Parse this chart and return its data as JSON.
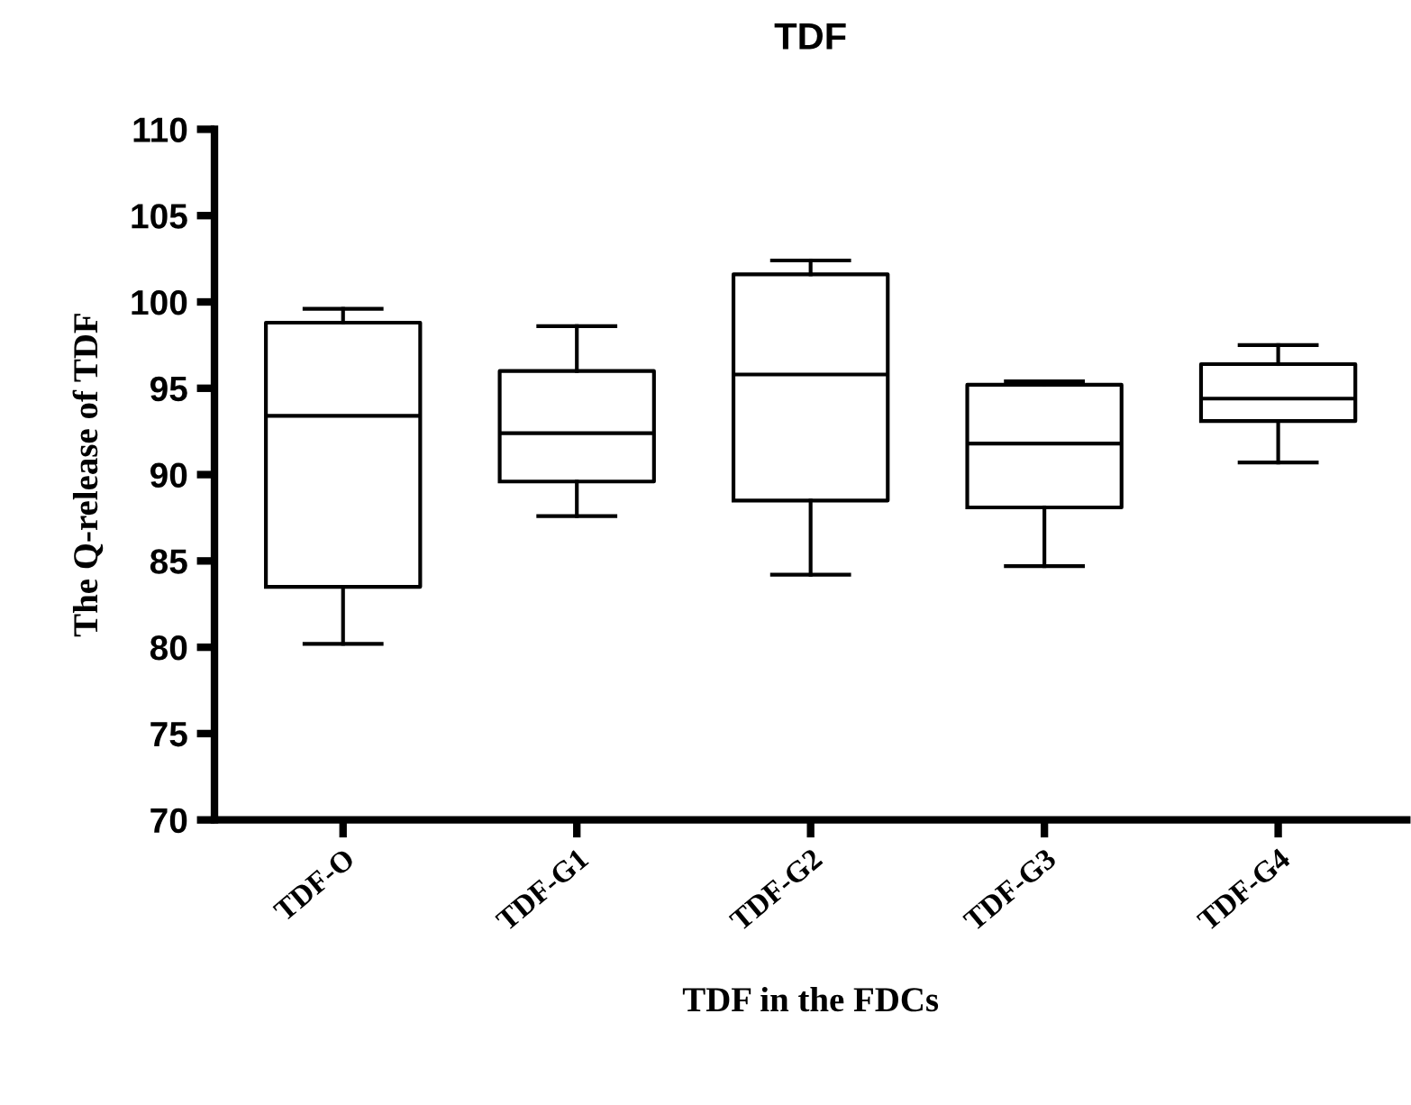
{
  "chart_data": {
    "type": "box",
    "title": "TDF",
    "xlabel": "TDF in the FDCs",
    "ylabel": "The Q-release of TDF",
    "categories": [
      "TDF-O",
      "TDF-G1",
      "TDF-G2",
      "TDF-G3",
      "TDF-G4"
    ],
    "boxes": [
      {
        "low": 80.2,
        "q1": 83.5,
        "median": 93.4,
        "q3": 98.8,
        "high": 99.6
      },
      {
        "low": 87.6,
        "q1": 89.6,
        "median": 92.4,
        "q3": 96.0,
        "high": 98.6
      },
      {
        "low": 84.2,
        "q1": 88.5,
        "median": 95.8,
        "q3": 101.6,
        "high": 102.4
      },
      {
        "low": 84.7,
        "q1": 88.1,
        "median": 91.8,
        "q3": 95.2,
        "high": 95.4
      },
      {
        "low": 90.7,
        "q1": 93.1,
        "median": 94.4,
        "q3": 96.4,
        "high": 97.5
      }
    ],
    "ylim": [
      70,
      110
    ],
    "yticks": [
      70,
      75,
      80,
      85,
      90,
      95,
      100,
      105,
      110
    ],
    "grid": false,
    "legend": false
  }
}
